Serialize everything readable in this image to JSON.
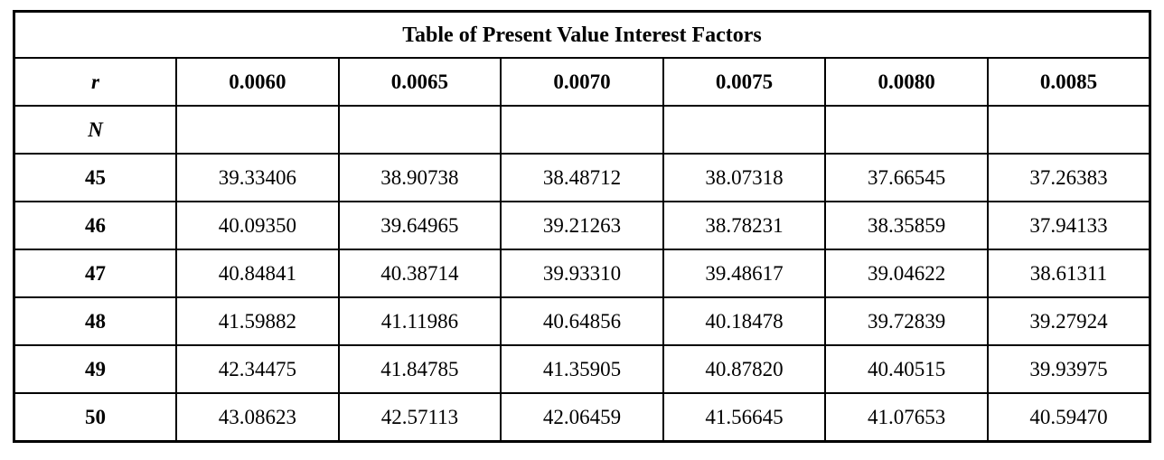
{
  "table": {
    "title": "Table of Present Value Interest Factors",
    "r_label": "r",
    "n_label": "N",
    "rate_headers": [
      "0.0060",
      "0.0065",
      "0.0070",
      "0.0075",
      "0.0080",
      "0.0085"
    ],
    "rows": [
      {
        "n": "45",
        "values": [
          "39.33406",
          "38.90738",
          "38.48712",
          "38.07318",
          "37.66545",
          "37.26383"
        ]
      },
      {
        "n": "46",
        "values": [
          "40.09350",
          "39.64965",
          "39.21263",
          "38.78231",
          "38.35859",
          "37.94133"
        ]
      },
      {
        "n": "47",
        "values": [
          "40.84841",
          "40.38714",
          "39.93310",
          "39.48617",
          "39.04622",
          "38.61311"
        ]
      },
      {
        "n": "48",
        "values": [
          "41.59882",
          "41.11986",
          "40.64856",
          "40.18478",
          "39.72839",
          "39.27924"
        ]
      },
      {
        "n": "49",
        "values": [
          "42.34475",
          "41.84785",
          "41.35905",
          "40.87820",
          "40.40515",
          "39.93975"
        ]
      },
      {
        "n": "50",
        "values": [
          "43.08623",
          "42.57113",
          "42.06459",
          "41.56645",
          "41.07653",
          "40.59470"
        ]
      }
    ]
  }
}
